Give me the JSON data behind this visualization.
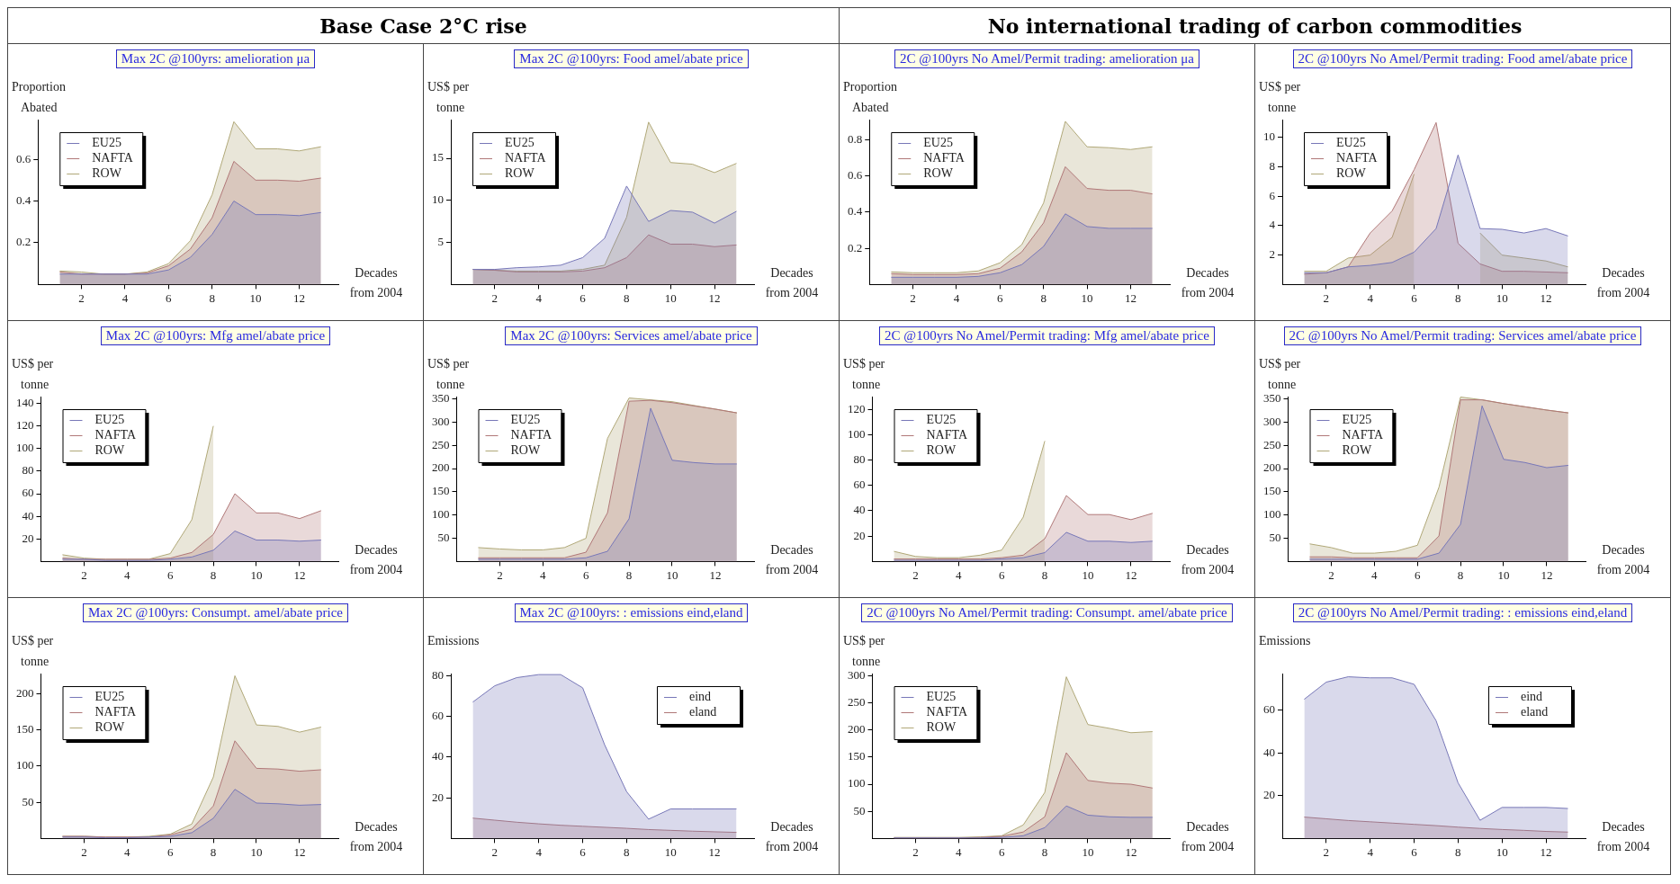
{
  "chart_data": [
    {
      "type": "other",
      "title": "Base Case 2°C rise"
    },
    {
      "type": "other",
      "title": "No international trading of carbon commodities"
    },
    {
      "type": "area",
      "title": "Max 2C @100yrs: amelioration μa",
      "ylabel": "Proportion\nAbated",
      "xlabel": "Decades\nfrom 2004",
      "legend": "top left",
      "x": [
        1,
        2,
        3,
        4,
        5,
        6,
        7,
        8,
        9,
        10,
        11,
        12,
        13
      ],
      "xlim": [
        0,
        13.8
      ],
      "xticks": [
        2,
        4,
        6,
        8,
        10,
        12
      ],
      "ylim": [
        0,
        0.79
      ],
      "yticks": [
        0.2,
        0.4,
        0.6
      ],
      "series": [
        {
          "name": "EU25",
          "color": "#7878b8",
          "values": [
            0.05,
            0.05,
            0.05,
            0.05,
            0.05,
            0.07,
            0.13,
            0.24,
            0.4,
            0.335,
            0.335,
            0.33,
            0.345
          ]
        },
        {
          "name": "NAFTA",
          "color": "#b07878",
          "values": [
            0.06,
            0.05,
            0.05,
            0.05,
            0.055,
            0.09,
            0.17,
            0.32,
            0.59,
            0.5,
            0.5,
            0.495,
            0.51
          ]
        },
        {
          "name": "ROW",
          "color": "#b0a878",
          "values": [
            0.065,
            0.06,
            0.05,
            0.05,
            0.06,
            0.1,
            0.21,
            0.43,
            0.78,
            0.65,
            0.65,
            0.64,
            0.66
          ]
        }
      ]
    },
    {
      "type": "area",
      "title": "Max 2C @100yrs: Food amel/abate price",
      "ylabel": "US$ per\ntonne",
      "xlabel": "Decades\nfrom 2004",
      "legend": "top left",
      "x": [
        1,
        2,
        3,
        4,
        5,
        6,
        7,
        8,
        9,
        10,
        11,
        12,
        13
      ],
      "xlim": [
        0,
        13.8
      ],
      "xticks": [
        2,
        4,
        6,
        8,
        10,
        12
      ],
      "ylim": [
        0,
        19.6
      ],
      "yticks": [
        5,
        10,
        15
      ],
      "series": [
        {
          "name": "EU25",
          "color": "#7878b8",
          "values": [
            1.8,
            1.8,
            2.0,
            2.1,
            2.3,
            3.2,
            5.5,
            11.7,
            7.5,
            8.8,
            8.6,
            7.3,
            8.7
          ]
        },
        {
          "name": "NAFTA",
          "color": "#b07878",
          "values": [
            1.8,
            1.7,
            1.5,
            1.5,
            1.5,
            1.6,
            2.0,
            3.2,
            5.9,
            4.8,
            4.8,
            4.5,
            4.7
          ]
        },
        {
          "name": "ROW",
          "color": "#b0a878",
          "values": [
            1.8,
            1.7,
            1.6,
            1.6,
            1.6,
            1.8,
            2.3,
            8,
            19.3,
            14.5,
            14.3,
            13.3,
            14.4
          ]
        }
      ]
    },
    {
      "type": "area",
      "title": "2C @100yrs No Amel/Permit trading: amelioration μa",
      "ylabel": "Proportion\nAbated",
      "xlabel": "Decades\nfrom 2004",
      "legend": "top left",
      "x": [
        1,
        2,
        3,
        4,
        5,
        6,
        7,
        8,
        9,
        10,
        11,
        12,
        13
      ],
      "xlim": [
        0,
        13.8
      ],
      "xticks": [
        2,
        4,
        6,
        8,
        10,
        12
      ],
      "ylim": [
        0,
        0.91
      ],
      "yticks": [
        0.2,
        0.4,
        0.6,
        0.8
      ],
      "series": [
        {
          "name": "EU25",
          "color": "#7878b8",
          "values": [
            0.04,
            0.04,
            0.04,
            0.04,
            0.045,
            0.065,
            0.11,
            0.21,
            0.39,
            0.32,
            0.31,
            0.31,
            0.31
          ]
        },
        {
          "name": "NAFTA",
          "color": "#b07878",
          "values": [
            0.06,
            0.055,
            0.055,
            0.055,
            0.06,
            0.09,
            0.18,
            0.34,
            0.65,
            0.53,
            0.52,
            0.52,
            0.5
          ]
        },
        {
          "name": "ROW",
          "color": "#b0a878",
          "values": [
            0.07,
            0.065,
            0.065,
            0.065,
            0.075,
            0.12,
            0.22,
            0.45,
            0.9,
            0.76,
            0.755,
            0.745,
            0.76
          ]
        }
      ]
    },
    {
      "type": "area",
      "title": "2C @100yrs No Amel/Permit trading: Food amel/abate price",
      "ylabel": "US$ per\ntonne",
      "xlabel": "Decades\nfrom 2004",
      "legend": "top left",
      "x": [
        1,
        2,
        3,
        4,
        5,
        6,
        7,
        8,
        9,
        10,
        11,
        12,
        13
      ],
      "xlim": [
        0,
        13.8
      ],
      "xticks": [
        2,
        4,
        6,
        8,
        10,
        12
      ],
      "ylim": [
        0,
        11.2
      ],
      "yticks": [
        2,
        4,
        6,
        8,
        10
      ],
      "series": [
        {
          "name": "EU25",
          "color": "#7878b8",
          "values": [
            0.8,
            0.8,
            1.2,
            1.3,
            1.5,
            2.2,
            3.8,
            8.8,
            3.8,
            3.75,
            3.5,
            3.8,
            3.3
          ]
        },
        {
          "name": "NAFTA",
          "color": "#b07878",
          "values": [
            0.7,
            0.8,
            1.2,
            3.5,
            5,
            7.8,
            11,
            2.8,
            1.4,
            0.9,
            0.9,
            0.85,
            0.8
          ]
        },
        {
          "name": "ROW",
          "color": "#b0a878",
          "values": [
            0.9,
            0.9,
            1.8,
            2.0,
            3.2,
            7.5,
            null,
            null,
            3.5,
            2.0,
            1.8,
            1.6,
            1.2
          ]
        }
      ]
    },
    {
      "type": "area",
      "title": "Max 2C @100yrs: Mfg amel/abate price",
      "ylabel": "US$ per\ntonne",
      "xlabel": "Decades\nfrom 2004",
      "legend": "top left",
      "x": [
        1,
        2,
        3,
        4,
        5,
        6,
        7,
        8,
        9,
        10,
        11,
        12,
        13
      ],
      "xlim": [
        0,
        13.8
      ],
      "xticks": [
        2,
        4,
        6,
        8,
        10,
        12
      ],
      "ylim": [
        0,
        146
      ],
      "yticks": [
        20,
        40,
        60,
        80,
        100,
        120,
        140
      ],
      "series": [
        {
          "name": "EU25",
          "color": "#7878b8",
          "values": [
            2,
            2,
            1,
            1,
            1,
            2,
            4,
            10,
            27,
            19,
            19,
            18,
            19
          ]
        },
        {
          "name": "NAFTA",
          "color": "#b07878",
          "values": [
            3,
            2,
            2,
            2,
            2,
            3,
            8,
            24,
            60,
            43,
            43,
            38,
            45
          ]
        },
        {
          "name": "ROW",
          "color": "#b0a878",
          "values": [
            6,
            3,
            2,
            2,
            2,
            7,
            37,
            120,
            null,
            null,
            null,
            null,
            null
          ]
        }
      ]
    },
    {
      "type": "area",
      "title": "Max 2C @100yrs: Services amel/abate price",
      "ylabel": "US$ per\ntonne",
      "xlabel": "Decades\nfrom 2004",
      "legend": "top left",
      "x": [
        1,
        2,
        3,
        4,
        5,
        6,
        7,
        8,
        9,
        10,
        11,
        12,
        13
      ],
      "xlim": [
        0,
        13.8
      ],
      "xticks": [
        2,
        4,
        6,
        8,
        10,
        12
      ],
      "ylim": [
        0,
        355
      ],
      "yticks": [
        50,
        100,
        150,
        200,
        250,
        300,
        350
      ],
      "series": [
        {
          "name": "EU25",
          "color": "#7878b8",
          "values": [
            5,
            5,
            5,
            5,
            5,
            8,
            22,
            92,
            330,
            218,
            213,
            210,
            210
          ]
        },
        {
          "name": "NAFTA",
          "color": "#b07878",
          "values": [
            8,
            8,
            8,
            8,
            8,
            20,
            105,
            345,
            347,
            342,
            335,
            328,
            320
          ]
        },
        {
          "name": "ROW",
          "color": "#b0a878",
          "values": [
            30,
            27,
            25,
            25,
            30,
            50,
            265,
            352,
            348,
            344,
            336,
            328,
            320
          ]
        }
      ]
    },
    {
      "type": "area",
      "title": "2C @100yrs No Amel/Permit trading: Mfg amel/abate price",
      "ylabel": "US$ per\ntonne",
      "xlabel": "Decades\nfrom 2004",
      "legend": "top left",
      "x": [
        1,
        2,
        3,
        4,
        5,
        6,
        7,
        8,
        9,
        10,
        11,
        12,
        13
      ],
      "xlim": [
        0,
        13.8
      ],
      "xticks": [
        2,
        4,
        6,
        8,
        10,
        12
      ],
      "ylim": [
        0,
        130
      ],
      "yticks": [
        20,
        40,
        60,
        80,
        100,
        120
      ],
      "series": [
        {
          "name": "EU25",
          "color": "#7878b8",
          "values": [
            1,
            1,
            1,
            1,
            1,
            2,
            3,
            7,
            23,
            16,
            16,
            15,
            16
          ]
        },
        {
          "name": "NAFTA",
          "color": "#b07878",
          "values": [
            2,
            2,
            2,
            2,
            2,
            3,
            5,
            18,
            52,
            37,
            37,
            33,
            38
          ]
        },
        {
          "name": "ROW",
          "color": "#b0a878",
          "values": [
            8,
            4,
            3,
            3,
            5,
            9,
            35,
            95,
            null,
            null,
            null,
            null,
            null
          ]
        }
      ]
    },
    {
      "type": "area",
      "title": "2C @100yrs No Amel/Permit trading: Services amel/abate price",
      "ylabel": "US$ per\ntonne",
      "xlabel": "Decades\nfrom 2004",
      "legend": "top left",
      "x": [
        1,
        2,
        3,
        4,
        5,
        6,
        7,
        8,
        9,
        10,
        11,
        12,
        13
      ],
      "xlim": [
        0,
        13.8
      ],
      "xticks": [
        2,
        4,
        6,
        8,
        10,
        12
      ],
      "ylim": [
        0,
        355
      ],
      "yticks": [
        50,
        100,
        150,
        200,
        250,
        300,
        350
      ],
      "series": [
        {
          "name": "EU25",
          "color": "#7878b8",
          "values": [
            5,
            5,
            5,
            5,
            5,
            5,
            18,
            80,
            335,
            220,
            213,
            202,
            207
          ]
        },
        {
          "name": "NAFTA",
          "color": "#b07878",
          "values": [
            10,
            10,
            8,
            8,
            8,
            8,
            55,
            348,
            348,
            340,
            333,
            326,
            320
          ]
        },
        {
          "name": "ROW",
          "color": "#b0a878",
          "values": [
            38,
            30,
            18,
            18,
            22,
            35,
            160,
            354,
            348,
            340,
            333,
            326,
            320
          ]
        }
      ]
    },
    {
      "type": "area",
      "title": "Max 2C @100yrs: Consumpt. amel/abate price",
      "ylabel": "US$ per\ntonne",
      "xlabel": "Decades\nfrom 2004",
      "legend": "top left",
      "x": [
        1,
        2,
        3,
        4,
        5,
        6,
        7,
        8,
        9,
        10,
        11,
        12,
        13
      ],
      "xlim": [
        0,
        13.8
      ],
      "xticks": [
        2,
        4,
        6,
        8,
        10,
        12
      ],
      "ylim": [
        0,
        228
      ],
      "yticks": [
        50,
        100,
        150,
        200
      ],
      "series": [
        {
          "name": "EU25",
          "color": "#7878b8",
          "values": [
            2,
            2,
            1,
            1,
            2,
            3,
            8,
            28,
            68,
            49,
            48,
            46,
            47
          ]
        },
        {
          "name": "NAFTA",
          "color": "#b07878",
          "values": [
            3,
            3,
            2,
            2,
            2,
            5,
            13,
            45,
            135,
            97,
            96,
            93,
            95
          ]
        },
        {
          "name": "ROW",
          "color": "#b0a878",
          "values": [
            3,
            3,
            2,
            2,
            3,
            6,
            20,
            85,
            225,
            157,
            155,
            147,
            154
          ]
        }
      ]
    },
    {
      "type": "area",
      "title": "Max 2C @100yrs: : emissions eind,eland",
      "ylabel": "Emissions",
      "xlabel": "Decades\nfrom 2004",
      "legend": "top right",
      "x": [
        1,
        2,
        3,
        4,
        5,
        6,
        7,
        8,
        9,
        10,
        11,
        12,
        13
      ],
      "xlim": [
        0,
        13.8
      ],
      "xticks": [
        2,
        4,
        6,
        8,
        10,
        12
      ],
      "ylim": [
        0,
        81
      ],
      "yticks": [
        20,
        40,
        60,
        80
      ],
      "series": [
        {
          "name": "eind",
          "color": "#7878b8",
          "values": [
            67,
            75,
            79,
            80.5,
            80.5,
            74,
            46,
            23,
            9.5,
            14.5,
            14.5,
            14.5,
            14.5
          ]
        },
        {
          "name": "eland",
          "color": "#b07878",
          "values": [
            10,
            9,
            8,
            7.2,
            6.5,
            6,
            5.5,
            5,
            4.4,
            4,
            3.6,
            3.3,
            3
          ]
        }
      ]
    },
    {
      "type": "area",
      "title": "2C @100yrs No Amel/Permit trading: Consumpt. amel/abate price",
      "ylabel": "US$ per\ntonne",
      "xlabel": "Decades\nfrom 2004",
      "legend": "top left",
      "x": [
        1,
        2,
        3,
        4,
        5,
        6,
        7,
        8,
        9,
        10,
        11,
        12,
        13
      ],
      "xlim": [
        0,
        13.8
      ],
      "xticks": [
        2,
        4,
        6,
        8,
        10,
        12
      ],
      "ylim": [
        0,
        304
      ],
      "yticks": [
        50,
        100,
        150,
        200,
        250,
        300
      ],
      "series": [
        {
          "name": "EU25",
          "color": "#7878b8",
          "values": [
            1,
            1,
            1,
            1,
            1,
            2,
            5,
            20,
            60,
            43,
            40,
            39,
            39
          ]
        },
        {
          "name": "NAFTA",
          "color": "#b07878",
          "values": [
            1,
            1,
            1,
            1,
            2,
            4,
            12,
            40,
            158,
            107,
            102,
            100,
            93
          ]
        },
        {
          "name": "ROW",
          "color": "#b0a878",
          "values": [
            2,
            2,
            2,
            2,
            3,
            5,
            25,
            85,
            298,
            210,
            203,
            195,
            197
          ]
        }
      ]
    },
    {
      "type": "area",
      "title": "2C @100yrs No Amel/Permit trading: : emissions eind,eland",
      "ylabel": "Emissions",
      "xlabel": "Decades\nfrom 2004",
      "legend": "top right",
      "x": [
        1,
        2,
        3,
        4,
        5,
        6,
        7,
        8,
        9,
        10,
        11,
        12,
        13
      ],
      "xlim": [
        0,
        13.8
      ],
      "xticks": [
        2,
        4,
        6,
        8,
        10,
        12
      ],
      "ylim": [
        0,
        77
      ],
      "yticks": [
        20,
        40,
        60
      ],
      "series": [
        {
          "name": "eind",
          "color": "#7878b8",
          "values": [
            65,
            73,
            75.5,
            75,
            75,
            72,
            55,
            26,
            8.5,
            14.5,
            14.5,
            14.5,
            14
          ]
        },
        {
          "name": "eland",
          "color": "#b07878",
          "values": [
            10,
            9.2,
            8.4,
            7.8,
            7.2,
            6.6,
            6,
            5.3,
            4.7,
            4.2,
            3.8,
            3.3,
            3
          ]
        }
      ]
    }
  ]
}
